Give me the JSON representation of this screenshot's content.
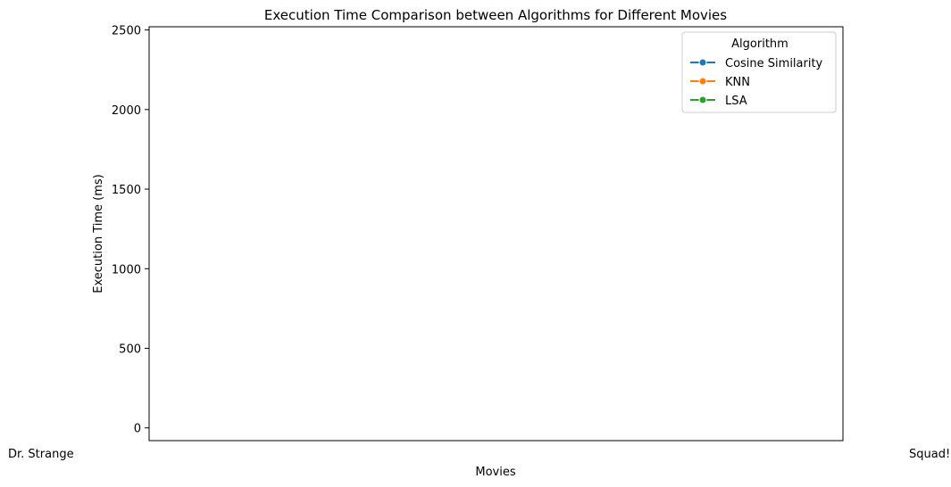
{
  "chart_data": {
    "type": "line",
    "title": "Execution Time Comparison between Algorithms for Different Movies",
    "xlabel": "Movies",
    "ylabel": "Execution Time (ms)",
    "ylim": [
      -80,
      2520
    ],
    "yticks": [
      0,
      500,
      1000,
      1500,
      2000,
      2500
    ],
    "grid": false,
    "legend_position": "top-right",
    "legend_title": "Algorithm",
    "x_tick_labels_visible": [
      "Dr. Strange",
      "Squad!"
    ],
    "series": [
      {
        "name": "Cosine Similarity",
        "color": "#1f77b4",
        "values": []
      },
      {
        "name": "KNN",
        "color": "#ff7f0e",
        "values": []
      },
      {
        "name": "LSA",
        "color": "#2ca02c",
        "values": []
      }
    ]
  }
}
